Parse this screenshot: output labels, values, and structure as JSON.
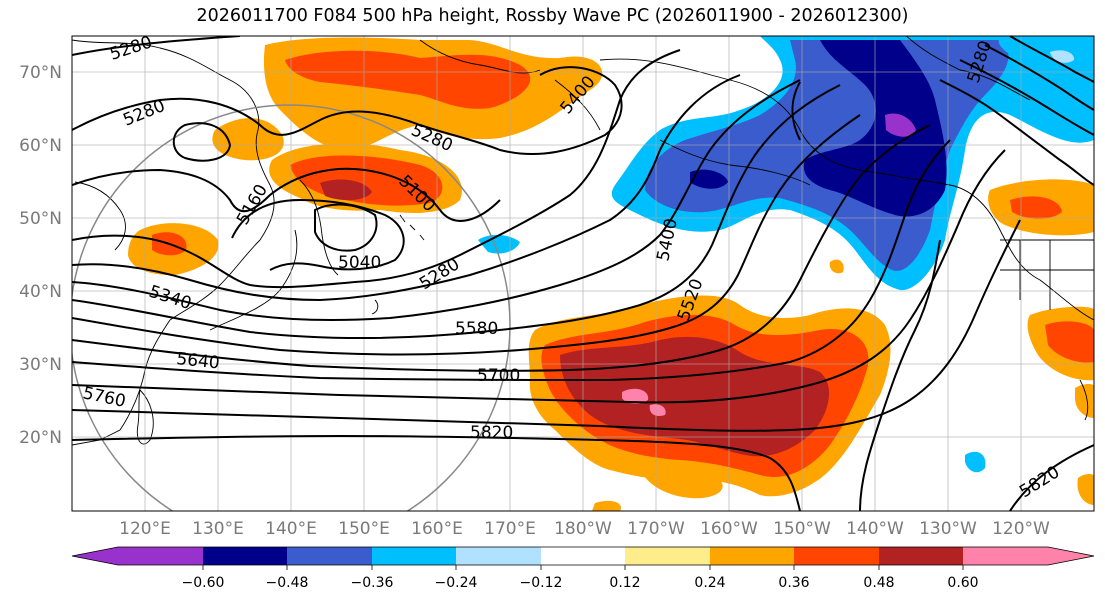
{
  "title": "2026011700 F084 500 hPa height, Rossby Wave PC (2026011900 - 2026012300)",
  "map": {
    "lat_labels": [
      "70°N",
      "60°N",
      "50°N",
      "40°N",
      "30°N",
      "20°N"
    ],
    "lon_labels": [
      "120°E",
      "130°E",
      "140°E",
      "150°E",
      "160°E",
      "170°E",
      "180°W",
      "170°W",
      "160°W",
      "150°W",
      "140°W",
      "130°W",
      "120°W"
    ],
    "height_labels": [
      "5280",
      "5280",
      "5280",
      "5160",
      "5100",
      "5040",
      "5280",
      "5340",
      "5400",
      "5400",
      "5520",
      "5580",
      "5640",
      "5700",
      "5760",
      "5820",
      "5820",
      "5280"
    ],
    "shading_colors": {
      "neg_0.60": "#9932cc",
      "neg_0.48": "#00008b",
      "neg_0.36": "#3a5ccc",
      "neg_0.24": "#00bfff",
      "neg_0.12": "#b0e2ff",
      "pos_0.24": "#ffa500",
      "pos_0.36": "#ff4500",
      "pos_0.48": "#b22222",
      "pos_0.60": "#ff82ab",
      "pos_0.12": "#ffec8b"
    }
  },
  "colorbar": {
    "colors": [
      "#9932cc",
      "#00008b",
      "#3a5ccc",
      "#00bfff",
      "#b0e2ff",
      "#ffffff",
      "#ffec8b",
      "#ffa500",
      "#ff4500",
      "#b22222",
      "#ff82ab"
    ],
    "tick_labels": [
      "−0.60",
      "−0.48",
      "−0.36",
      "−0.24",
      "−0.12",
      "0.12",
      "0.24",
      "0.36",
      "0.48",
      "0.60"
    ]
  }
}
